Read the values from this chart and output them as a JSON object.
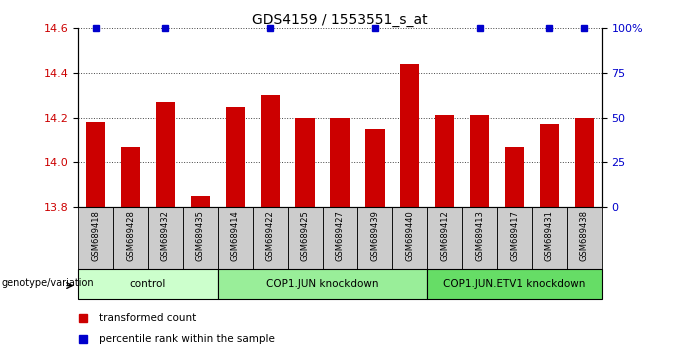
{
  "title": "GDS4159 / 1553551_s_at",
  "samples": [
    "GSM689418",
    "GSM689428",
    "GSM689432",
    "GSM689435",
    "GSM689414",
    "GSM689422",
    "GSM689425",
    "GSM689427",
    "GSM689439",
    "GSM689440",
    "GSM689412",
    "GSM689413",
    "GSM689417",
    "GSM689431",
    "GSM689438"
  ],
  "red_values": [
    14.18,
    14.07,
    14.27,
    13.85,
    14.25,
    14.3,
    14.2,
    14.2,
    14.15,
    14.44,
    14.21,
    14.21,
    14.07,
    14.17,
    14.2
  ],
  "blue_positions": [
    0,
    2,
    5,
    8,
    11,
    13,
    14
  ],
  "ylim_left": [
    13.8,
    14.6
  ],
  "ylim_right": [
    0,
    100
  ],
  "yticks_left": [
    13.8,
    14.0,
    14.2,
    14.4,
    14.6
  ],
  "yticks_right": [
    0,
    25,
    50,
    75,
    100
  ],
  "groups": [
    {
      "label": "control",
      "start": 0,
      "end": 4,
      "color": "#ccffcc"
    },
    {
      "label": "COP1.JUN knockdown",
      "start": 4,
      "end": 10,
      "color": "#99ee99"
    },
    {
      "label": "COP1.JUN.ETV1 knockdown",
      "start": 10,
      "end": 15,
      "color": "#66dd66"
    }
  ],
  "bar_color": "#cc0000",
  "blue_color": "#0000cc",
  "xlabel_group": "genotype/variation",
  "legend_red": "transformed count",
  "legend_blue": "percentile rank within the sample",
  "bar_width": 0.55,
  "dotted_grid_color": "#444444",
  "tick_label_color_left": "#cc0000",
  "tick_label_color_right": "#0000cc",
  "sample_box_color": "#cccccc",
  "fig_width": 6.8,
  "fig_height": 3.54,
  "dpi": 100
}
